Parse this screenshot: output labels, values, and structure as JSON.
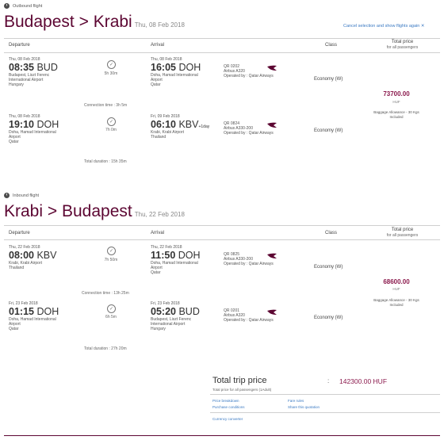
{
  "outbound": {
    "label": "Outbound flight",
    "origin": "Budapest",
    "sep": ">",
    "destination": "Krabi",
    "date": "Thu, 08 Feb 2018",
    "cancel_link": "Cancel selection and show flights again",
    "headers": {
      "departure": "Departure",
      "arrival": "Arrival",
      "class": "Class",
      "total": "Total price",
      "total_sub": "for all passengers"
    },
    "legs": [
      {
        "dep_date": "Thu, 08 Feb 2018",
        "dep_time": "08:35",
        "dep_code": "BUD",
        "dep_place": [
          "Budapest, Liszt Ferenc",
          "International Airport",
          "Hungary"
        ],
        "duration": "5h 30m",
        "arr_date": "Thu, 08 Feb 2018",
        "arr_time": "16:05",
        "arr_code": "DOH",
        "arr_plus": "",
        "arr_place": [
          "Doha, Hamad International",
          "Airport",
          "Qatar"
        ],
        "flight": "QR 0202",
        "aircraft": "Airbus A320",
        "operator": "Operated by : Qatar Airways",
        "class": "Economy (W)"
      },
      {
        "dep_date": "Thu, 08 Feb 2018",
        "dep_time": "19:10",
        "dep_code": "DOH",
        "dep_place": [
          "Doha, Hamad International",
          "Airport",
          "Qatar"
        ],
        "duration": "7h 0m",
        "arr_date": "Fri, 09 Feb 2018",
        "arr_time": "06:10",
        "arr_code": "KBV",
        "arr_plus": "+1day",
        "arr_place": [
          "Krabi, Krabi Airport",
          "Thailand"
        ],
        "flight": "QR 0824",
        "aircraft": "Airbus A330-200",
        "operator": "Operated by : Qatar Airways",
        "class": "Economy (W)"
      }
    ],
    "connection": "Connection time : 3h 5m",
    "total_duration": "Total duration : 15h 35m",
    "price": "73700.00",
    "currency": "HUF",
    "baggage": "Baggage Allowance - 30 Kgs",
    "baggage_sub": "Included"
  },
  "inbound": {
    "label": "Inbound flight",
    "origin": "Krabi",
    "sep": ">",
    "destination": "Budapest",
    "date": "Thu, 22 Feb 2018",
    "headers": {
      "departure": "Departure",
      "arrival": "Arrival",
      "class": "Class",
      "total": "Total price",
      "total_sub": "for all passengers"
    },
    "legs": [
      {
        "dep_date": "Thu, 22 Feb 2018",
        "dep_time": "08:00",
        "dep_code": "KBV",
        "dep_place": [
          "Krabi, Krabi Airport",
          "Thailand"
        ],
        "duration": "7h 50m",
        "arr_date": "Thu, 22 Feb 2018",
        "arr_time": "11:50",
        "arr_code": "DOH",
        "arr_plus": "",
        "arr_place": [
          "Doha, Hamad International",
          "Airport",
          "Qatar"
        ],
        "flight": "QR 0825",
        "aircraft": "Airbus A330-200",
        "operator": "Operated by : Qatar Airways",
        "class": "Economy (W)"
      },
      {
        "dep_date": "Fri, 23 Feb 2018",
        "dep_time": "01:15",
        "dep_code": "DOH",
        "dep_place": [
          "Doha, Hamad International",
          "Airport",
          "Qatar"
        ],
        "duration": "6h 5m",
        "arr_date": "Fri, 23 Feb 2018",
        "arr_time": "05:20",
        "arr_code": "BUD",
        "arr_plus": "",
        "arr_place": [
          "Budapest, Liszt Ferenc",
          "International Airport",
          "Hungary"
        ],
        "flight": "QR 0201",
        "aircraft": "Airbus A320",
        "operator": "Operated by : Qatar Airways",
        "class": "Economy (W)"
      }
    ],
    "connection": "Connection time : 13h 25m",
    "total_duration": "Total duration : 27h 20m",
    "price": "68600.00",
    "currency": "HUF",
    "baggage": "Baggage Allowance - 30 Kgs",
    "baggage_sub": "Included"
  },
  "summary": {
    "title": "Total trip price",
    "sub": "Total price for all passengers (1Adult)",
    "colon": ":",
    "value": "142300.00 HUF",
    "links": {
      "breakdown": "Price breakdown",
      "fare_rules": "Fare rules",
      "purchase": "Purchase conditions",
      "share": "Share this quotation",
      "converter": "Currency converter"
    }
  },
  "colors": {
    "brand": "#5c0632",
    "accent": "#8b1a4d",
    "link": "#3a79c2"
  }
}
